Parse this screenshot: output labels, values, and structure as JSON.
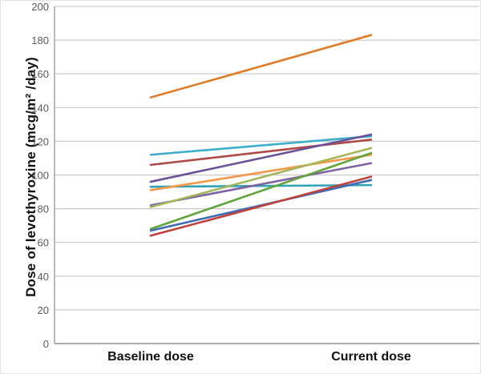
{
  "figure": {
    "ylabel": "Dose of levothyroxine (mcg/m² /day)"
  },
  "chart_data": {
    "type": "line",
    "subtype": "slope-chart",
    "title": "",
    "xlabel": "",
    "ylabel": "Dose of levothyroxine (mcg/m² /day)",
    "categories": [
      "Baseline dose",
      "Current dose"
    ],
    "ylim": [
      0,
      200
    ],
    "ytick_step": 20,
    "yticks": [
      0,
      20,
      40,
      60,
      80,
      100,
      120,
      140,
      160,
      180,
      200
    ],
    "grid": "horizontal",
    "legend": "none",
    "series": [
      {
        "name": "line-orange-dark",
        "color": "#E07C28",
        "values": [
          146,
          183
        ]
      },
      {
        "name": "line-sky-blue",
        "color": "#3BAECB",
        "values": [
          112,
          123
        ]
      },
      {
        "name": "line-dark-red",
        "color": "#B04A47",
        "values": [
          106,
          121
        ]
      },
      {
        "name": "line-purple",
        "color": "#6B5197",
        "values": [
          96,
          124
        ]
      },
      {
        "name": "line-teal-flat",
        "color": "#2FA3B6",
        "values": [
          93,
          94
        ]
      },
      {
        "name": "line-light-orange",
        "color": "#F79646",
        "values": [
          91,
          112
        ]
      },
      {
        "name": "line-medium-purple",
        "color": "#7F63A5",
        "values": [
          82,
          107
        ]
      },
      {
        "name": "line-olive-green",
        "color": "#A3B75A",
        "values": [
          81,
          116
        ]
      },
      {
        "name": "line-grass-green",
        "color": "#62A43C",
        "values": [
          68,
          113
        ]
      },
      {
        "name": "line-blue",
        "color": "#3B6CB4",
        "values": [
          67,
          97
        ]
      },
      {
        "name": "line-red",
        "color": "#C0413C",
        "values": [
          64,
          99
        ]
      }
    ]
  },
  "colors": {
    "gridline": "#c9c9c9",
    "axis": "#a3a3a3",
    "tick_label": "#5a5a5a",
    "text": "#111111",
    "background": "#ffffff"
  }
}
